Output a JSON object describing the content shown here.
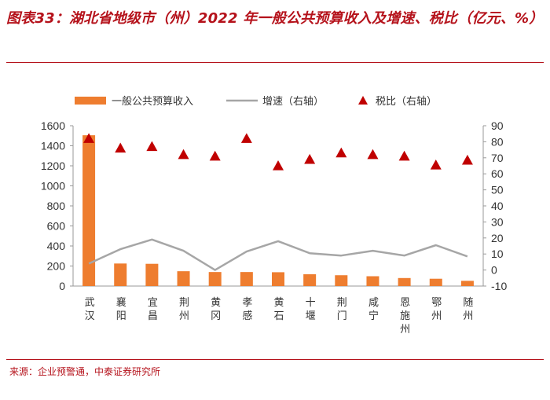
{
  "title": "图表33：湖北省地级市（州）2022 年一般公共预算收入及增速、税比（亿元、%）",
  "source": "来源：企业预警通，中泰证券研究所",
  "colors": {
    "accent": "#b5121b",
    "bar": "#ee7d2f",
    "line": "#a6a6a6",
    "marker": "#c00000"
  },
  "chart_data": {
    "type": "bar",
    "categories": [
      "武汉",
      "襄阳",
      "宜昌",
      "荆州",
      "黄冈",
      "孝感",
      "黄石",
      "十堰",
      "荆门",
      "咸宁",
      "恩施州",
      "鄂州",
      "随州"
    ],
    "series": [
      {
        "name": "一般公共预算收入",
        "type": "bar",
        "axis": "left",
        "values": [
          1505,
          225,
          222,
          148,
          140,
          140,
          138,
          118,
          108,
          98,
          80,
          73,
          52
        ]
      },
      {
        "name": "增速（右轴）",
        "type": "line",
        "axis": "right",
        "values": [
          4,
          13,
          19,
          12,
          0,
          11.5,
          18,
          10.5,
          9,
          12,
          9,
          15.5,
          8.5
        ]
      },
      {
        "name": "税比（右轴）",
        "type": "scatter",
        "axis": "right",
        "values": [
          82,
          76,
          77,
          72,
          71,
          82,
          65,
          69,
          73,
          72,
          71,
          65.5,
          68.5
        ]
      }
    ],
    "left_axis": {
      "ylim": [
        0,
        1600
      ],
      "ticks": [
        "0",
        "200",
        "400",
        "600",
        "800",
        "1000",
        "1200",
        "1400",
        "1600"
      ]
    },
    "right_axis": {
      "ylim": [
        -10,
        90
      ],
      "ticks": [
        "-10",
        "0",
        "10",
        "20",
        "30",
        "40",
        "50",
        "60",
        "70",
        "80",
        "90"
      ]
    },
    "legend_position": "top",
    "grid": false
  }
}
